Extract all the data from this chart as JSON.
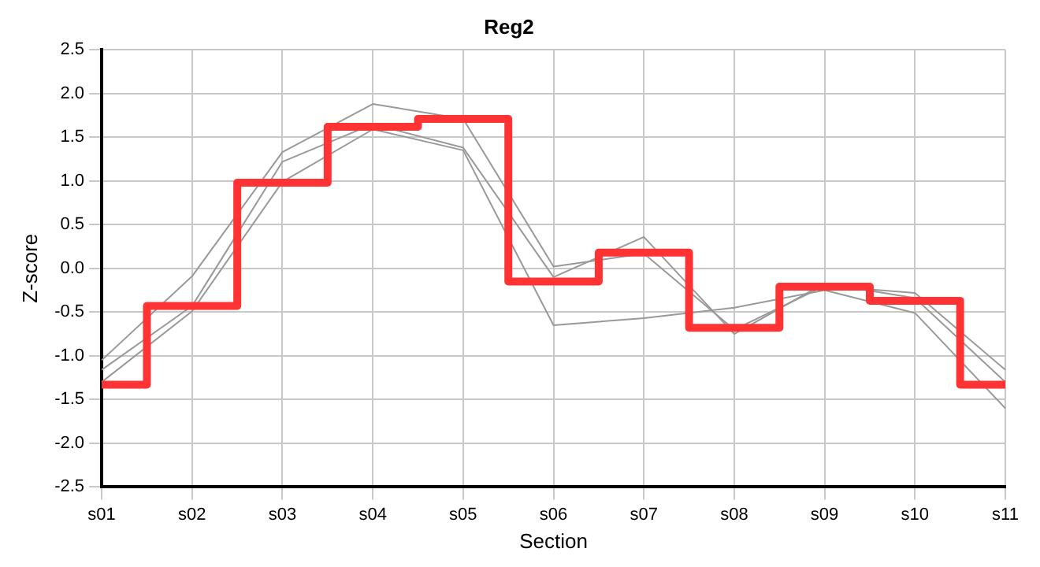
{
  "chart_data": {
    "type": "line",
    "title": "Reg2",
    "xlabel": "Section",
    "ylabel": "Z-score",
    "categories": [
      "s01",
      "s02",
      "s03",
      "s04",
      "s05",
      "s06",
      "s07",
      "s08",
      "s09",
      "s10",
      "s11"
    ],
    "series": [
      {
        "type": "line",
        "color": "#999999",
        "values": [
          -1.05,
          -0.09,
          1.33,
          1.88,
          1.71,
          0.02,
          0.17,
          -0.7,
          -0.2,
          -0.28,
          -1.16
        ]
      },
      {
        "type": "line",
        "color": "#999999",
        "values": [
          -1.16,
          -0.43,
          1.22,
          1.65,
          1.38,
          -0.1,
          0.36,
          -0.75,
          -0.17,
          -0.34,
          -1.3
        ]
      },
      {
        "type": "line",
        "color": "#999999",
        "values": [
          -1.3,
          -0.49,
          0.99,
          1.59,
          1.35,
          -0.65,
          -0.57,
          -0.45,
          -0.25,
          -0.51,
          -1.6
        ]
      },
      {
        "type": "step",
        "color": "#ff3333",
        "values": [
          -1.33,
          -0.43,
          0.98,
          1.62,
          1.71,
          -0.15,
          0.18,
          -0.68,
          -0.21,
          -0.37,
          -1.33
        ]
      }
    ],
    "ylim": [
      -2.5,
      2.5
    ],
    "yticks": [
      {
        "value": -2.5,
        "label": "-2.5"
      },
      {
        "value": -2,
        "label": "-2.0"
      },
      {
        "value": -1.5,
        "label": "-1.5"
      },
      {
        "value": -1,
        "label": "-1.0"
      },
      {
        "value": -0.5,
        "label": "-0.5"
      },
      {
        "value": 0,
        "label": "0.0"
      },
      {
        "value": 0.5,
        "label": "0.5"
      },
      {
        "value": 1,
        "label": "1.0"
      },
      {
        "value": 1.5,
        "label": "1.5"
      },
      {
        "value": 2,
        "label": "2.0"
      },
      {
        "value": 2.5,
        "label": "2.5"
      }
    ],
    "grid": true,
    "legend": false,
    "marker": "none"
  }
}
